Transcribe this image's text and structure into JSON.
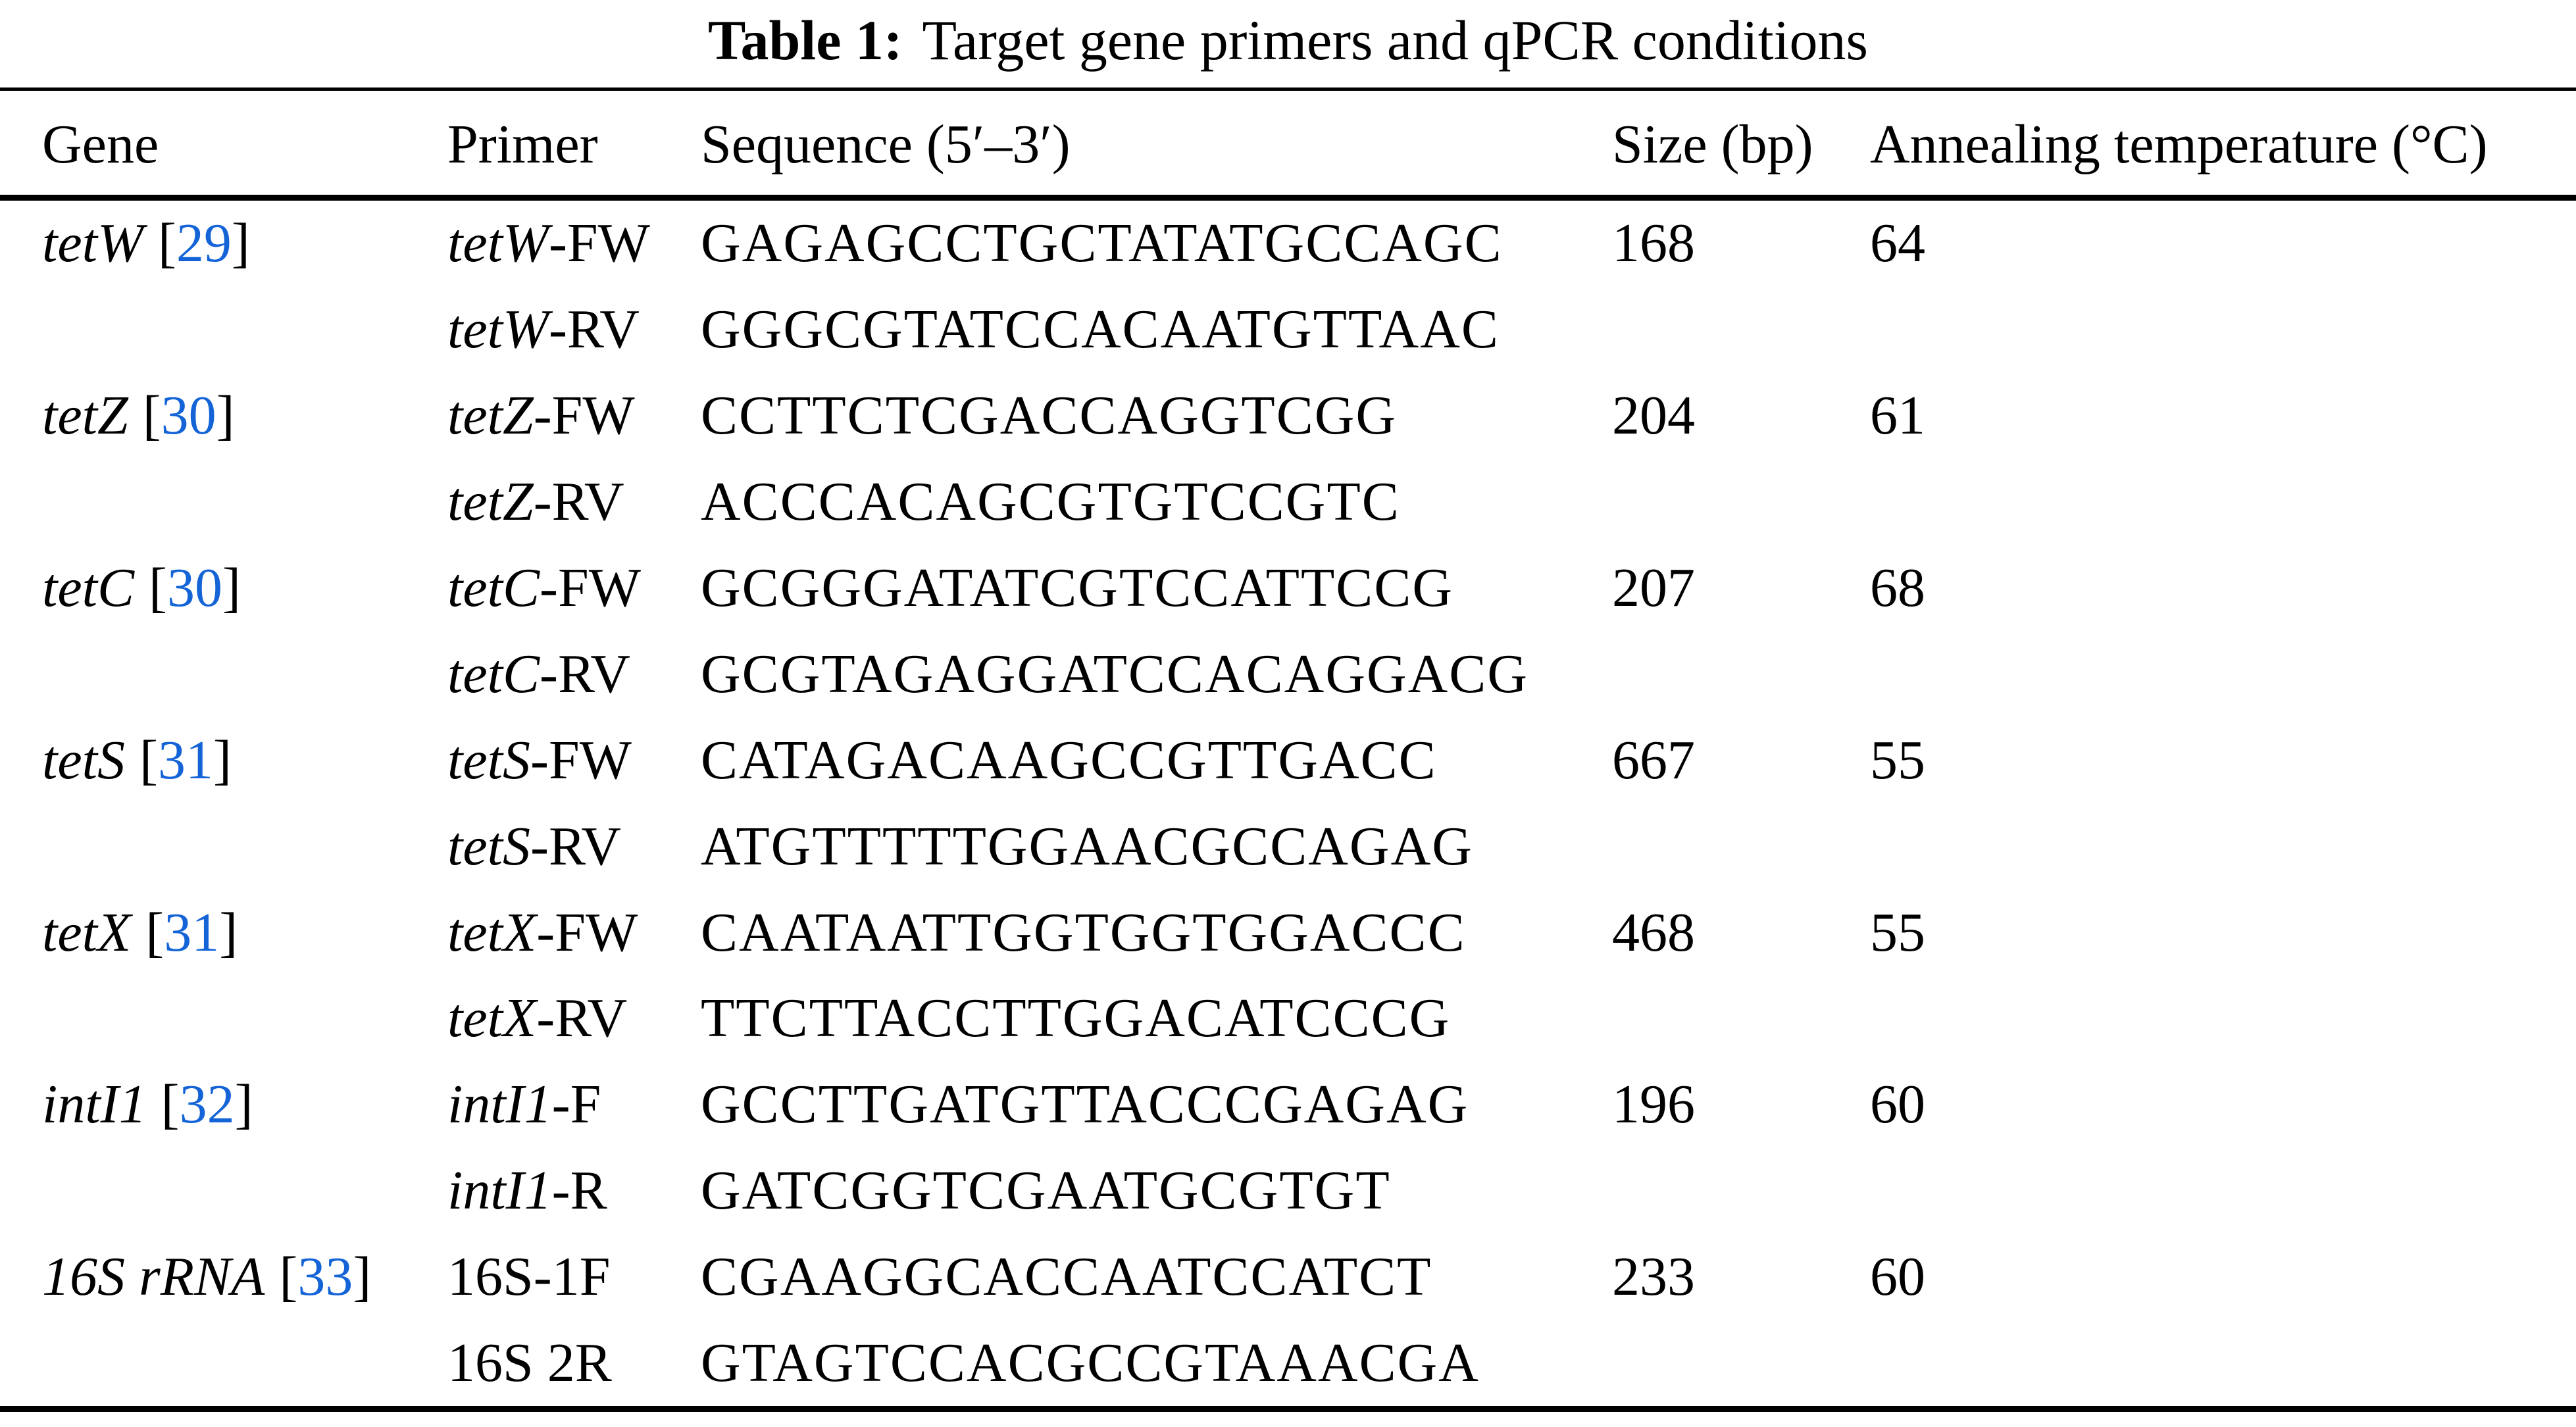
{
  "caption": {
    "label": "Table 1:",
    "text": "Target gene primers and qPCR conditions"
  },
  "columns": [
    "Gene",
    "Primer",
    "Sequence (5′–3′)",
    "Size (bp)",
    "Annealing temperature (°C)"
  ],
  "punct": {
    "open": "[",
    "close": "]"
  },
  "colors": {
    "text": "#000000",
    "background": "#ffffff",
    "citation_blue": "#1464d7"
  },
  "genes": [
    {
      "name": "tetW",
      "ref": "29",
      "fw": {
        "it": "tetW",
        "suf": "-FW"
      },
      "fw_seq": "GAGAGCCTGCTATATGCCAGC",
      "rv": {
        "it": "tetW",
        "suf": "-RV"
      },
      "rv_seq": "GGGCGTATCCACAATGTTAAC",
      "size": "168",
      "temp": "64"
    },
    {
      "name": "tetZ",
      "ref": "30",
      "fw": {
        "it": "tetZ",
        "suf": "-FW"
      },
      "fw_seq": "CCTTCTCGACCAGGTCGG",
      "rv": {
        "it": "tetZ",
        "suf": "-RV"
      },
      "rv_seq": "ACCCACAGCGTGTCCGTC",
      "size": "204",
      "temp": "61"
    },
    {
      "name": "tetC",
      "ref": "30",
      "fw": {
        "it": "tetC",
        "suf": "-FW"
      },
      "fw_seq": "GCGGGATATCGTCCATTCCG",
      "rv": {
        "it": "tetC",
        "suf": "-RV"
      },
      "rv_seq": "GCGTAGAGGATCCACAGGACG",
      "size": "207",
      "temp": "68"
    },
    {
      "name": "tetS",
      "ref": "31",
      "fw": {
        "it": "tetS",
        "suf": "-FW"
      },
      "fw_seq": "CATAGACAAGCCGTTGACC",
      "rv": {
        "it": "tetS",
        "suf": "-RV"
      },
      "rv_seq": "ATGTTTTTGGAACGCCAGAG",
      "size": "667",
      "temp": "55"
    },
    {
      "name": "tetX",
      "ref": "31",
      "fw": {
        "it": "tetX",
        "suf": "-FW"
      },
      "fw_seq": "CAATAATTGGTGGTGGACCC",
      "rv": {
        "it": "tetX",
        "suf": "-RV"
      },
      "rv_seq": "TTCTTACCTTGGACATCCCG",
      "size": "468",
      "temp": "55"
    },
    {
      "name": "intI1",
      "ref": "32",
      "fw": {
        "it": "intI1",
        "suf": "-F"
      },
      "fw_seq": "GCCTTGATGTTACCCGAGAG",
      "rv": {
        "it": "intI1",
        "suf": "-R"
      },
      "rv_seq": "GATCGGTCGAATGCGTGT",
      "size": "196",
      "temp": "60"
    },
    {
      "name": "16S rRNA",
      "ref": "33",
      "fw": {
        "it": "",
        "suf": "16S-1F"
      },
      "fw_seq": "CGAAGGCACCAATCCATCT",
      "rv": {
        "it": "",
        "suf": "16S 2R"
      },
      "rv_seq": "GTAGTCCACGCCGTAAACGA",
      "size": "233",
      "temp": "60"
    }
  ]
}
